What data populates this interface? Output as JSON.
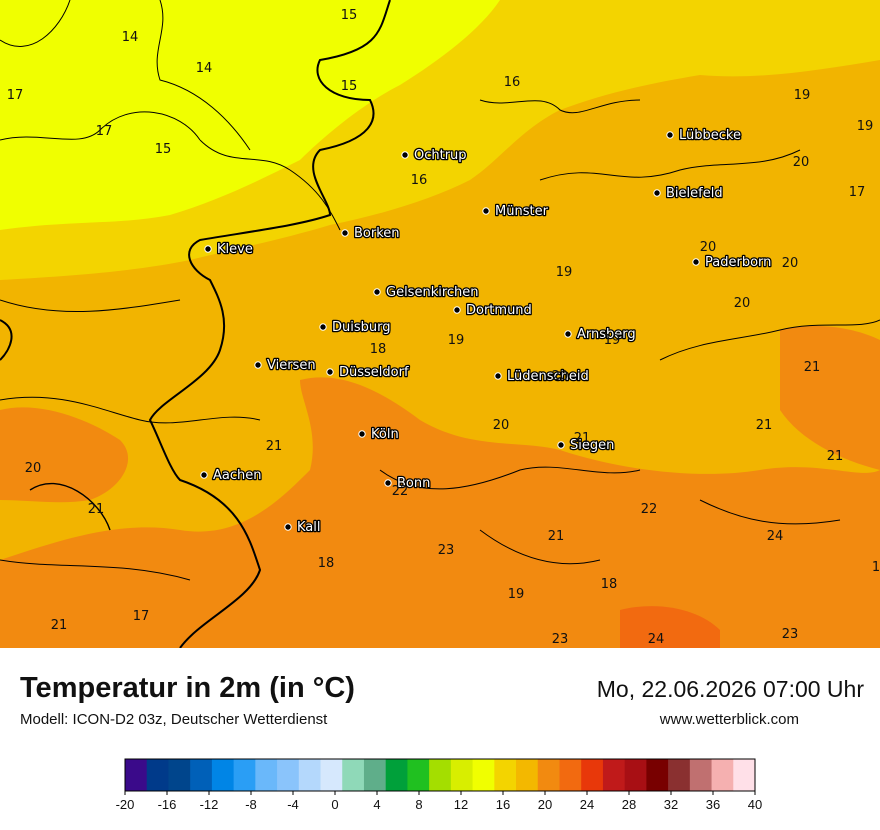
{
  "header": {
    "title": "Temperatur in 2m (in °C)",
    "subtitle": "Modell: ICON-D2 03z, Deutscher Wetterdienst",
    "datetime": "Mo, 22.06.2026 07:00 Uhr",
    "site": "www.wetterblick.com"
  },
  "cities": [
    {
      "name": "Ochtrup"
    },
    {
      "name": "Lübbecke"
    },
    {
      "name": "Bielefeld"
    },
    {
      "name": "Münster"
    },
    {
      "name": "Borken"
    },
    {
      "name": "Kleve"
    },
    {
      "name": "Paderborn"
    },
    {
      "name": "Gelsenkirchen"
    },
    {
      "name": "Dortmund"
    },
    {
      "name": "Duisburg"
    },
    {
      "name": "Arnsberg"
    },
    {
      "name": "Viersen"
    },
    {
      "name": "Düsseldorf"
    },
    {
      "name": "Lüdenscheid"
    },
    {
      "name": "Köln"
    },
    {
      "name": "Siegen"
    },
    {
      "name": "Aachen"
    },
    {
      "name": "Bonn"
    },
    {
      "name": "Kall"
    }
  ],
  "temperature_labels": [
    "15",
    "14",
    "14",
    "17",
    "17",
    "15",
    "15",
    "16",
    "16",
    "19",
    "19",
    "20",
    "17",
    "20",
    "20",
    "19",
    "20",
    "19",
    "18",
    "19",
    "20",
    "20",
    "21",
    "21",
    "21",
    "20",
    "21",
    "21",
    "21",
    "22",
    "22",
    "23",
    "21",
    "24",
    "18",
    "19",
    "18",
    "17",
    "21",
    "23",
    "24",
    "23",
    "1"
  ],
  "legend": {
    "ticks": [
      "-20",
      "-16",
      "-12",
      "-8",
      "-4",
      "0",
      "4",
      "8",
      "12",
      "16",
      "20",
      "24",
      "28",
      "32",
      "36",
      "40"
    ],
    "colors": [
      "#3a0a8a",
      "#003a8a",
      "#00458c",
      "#0060b8",
      "#0085e6",
      "#2a9ef5",
      "#6ab8fa",
      "#8ac4fb",
      "#b4d8fc",
      "#d6e8fd",
      "#8fd9b8",
      "#5fae8a",
      "#00a03a",
      "#20c020",
      "#a4de00",
      "#d8ee00",
      "#f0ff00",
      "#f3d400",
      "#f3b800",
      "#f28a10",
      "#f26a10",
      "#e8380a",
      "#c01a1a",
      "#a80f14",
      "#780000",
      "#8a3030",
      "#c07070",
      "#f5b0b0",
      "#ffe0e8"
    ]
  }
}
